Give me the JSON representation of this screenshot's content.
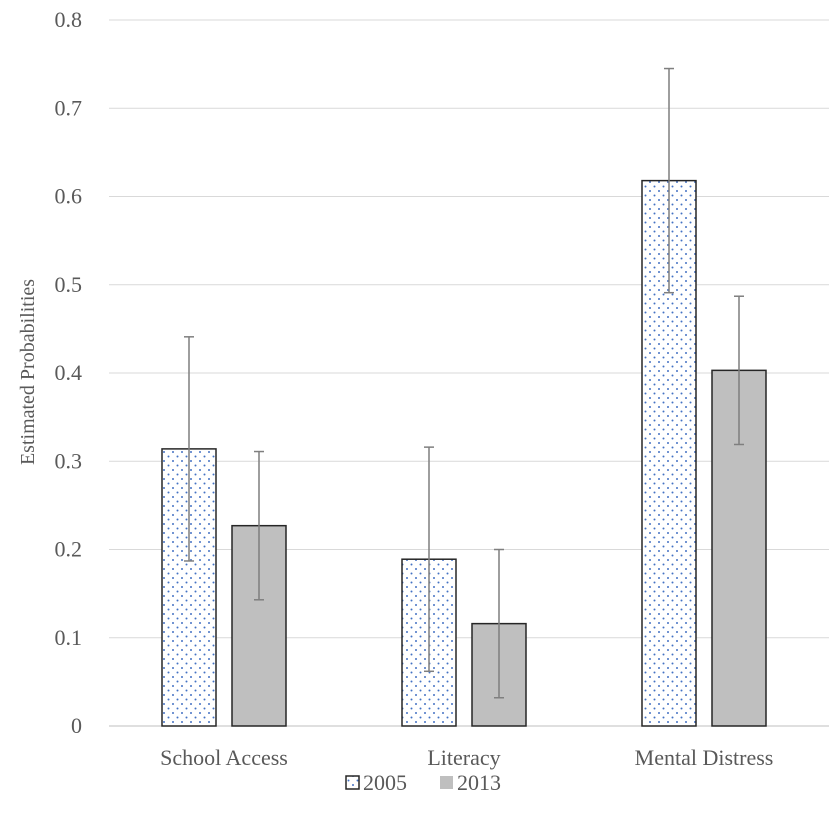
{
  "chart_data": {
    "type": "bar",
    "title": "",
    "xlabel": "",
    "ylabel": "Estimated Probabilities",
    "ylim": [
      0,
      0.8
    ],
    "yticks": [
      "0",
      "0.1",
      "0.2",
      "0.3",
      "0.4",
      "0.5",
      "0.6",
      "0.7",
      "0.8"
    ],
    "categories": [
      "School Access",
      "Literacy",
      "Mental Distress"
    ],
    "series": [
      {
        "name": "2005",
        "style": "dotted",
        "color": "#4472c4",
        "values": [
          0.314,
          0.189,
          0.618
        ],
        "error_low": [
          0.187,
          0.062,
          0.491
        ],
        "error_high": [
          0.441,
          0.316,
          0.745
        ]
      },
      {
        "name": "2013",
        "style": "solid",
        "color": "#bfbfbf",
        "values": [
          0.227,
          0.116,
          0.403
        ],
        "error_low": [
          0.143,
          0.032,
          0.319
        ],
        "error_high": [
          0.311,
          0.2,
          0.487
        ]
      }
    ],
    "grid": true,
    "legend_position": "bottom-center"
  }
}
